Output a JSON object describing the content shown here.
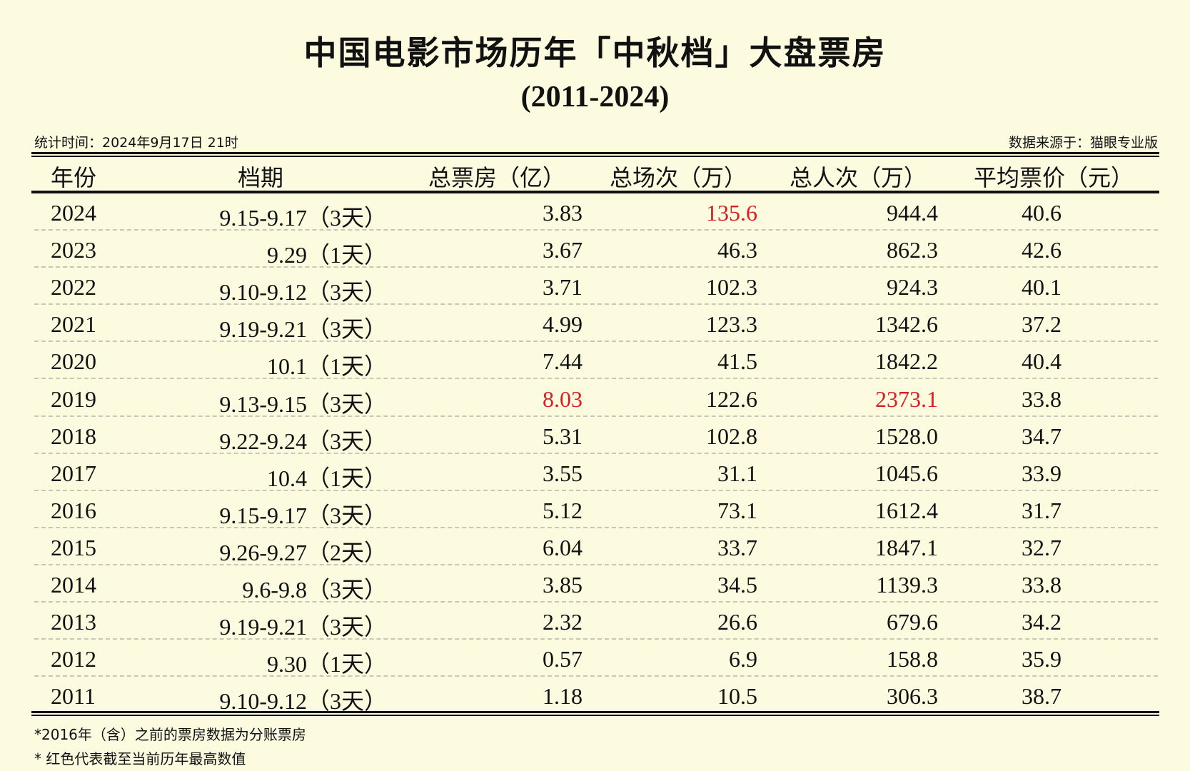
{
  "title": "中国电影市场历年「中秋档」大盘票房",
  "subtitle": "(2011-2024)",
  "stat_time": "统计时间：2024年9月17日 21时",
  "source": "数据来源于：猫眼专业版",
  "headers": [
    "年份",
    "档期",
    "总票房（亿）",
    "总场次（万）",
    "总人次（万）",
    "平均票价（元）"
  ],
  "highlight_color": "#d42020",
  "rows": [
    {
      "year": "2024",
      "period": "9.15-9.17（3天）",
      "box": "3.83",
      "shows": "135.6",
      "admissions": "944.4",
      "price": "40.6",
      "red": [
        "shows"
      ]
    },
    {
      "year": "2023",
      "period": "9.29（1天）",
      "box": "3.67",
      "shows": "46.3",
      "admissions": "862.3",
      "price": "42.6",
      "red": []
    },
    {
      "year": "2022",
      "period": "9.10-9.12（3天）",
      "box": "3.71",
      "shows": "102.3",
      "admissions": "924.3",
      "price": "40.1",
      "red": []
    },
    {
      "year": "2021",
      "period": "9.19-9.21（3天）",
      "box": "4.99",
      "shows": "123.3",
      "admissions": "1342.6",
      "price": "37.2",
      "red": []
    },
    {
      "year": "2020",
      "period": "10.1（1天）",
      "box": "7.44",
      "shows": "41.5",
      "admissions": "1842.2",
      "price": "40.4",
      "red": []
    },
    {
      "year": "2019",
      "period": "9.13-9.15（3天）",
      "box": "8.03",
      "shows": "122.6",
      "admissions": "2373.1",
      "price": "33.8",
      "red": [
        "box",
        "admissions"
      ]
    },
    {
      "year": "2018",
      "period": "9.22-9.24（3天）",
      "box": "5.31",
      "shows": "102.8",
      "admissions": "1528.0",
      "price": "34.7",
      "red": []
    },
    {
      "year": "2017",
      "period": "10.4（1天）",
      "box": "3.55",
      "shows": "31.1",
      "admissions": "1045.6",
      "price": "33.9",
      "red": []
    },
    {
      "year": "2016",
      "period": "9.15-9.17（3天）",
      "box": "5.12",
      "shows": "73.1",
      "admissions": "1612.4",
      "price": "31.7",
      "red": []
    },
    {
      "year": "2015",
      "period": "9.26-9.27（2天）",
      "box": "6.04",
      "shows": "33.7",
      "admissions": "1847.1",
      "price": "32.7",
      "red": []
    },
    {
      "year": "2014",
      "period": "9.6-9.8（3天）",
      "box": "3.85",
      "shows": "34.5",
      "admissions": "1139.3",
      "price": "33.8",
      "red": []
    },
    {
      "year": "2013",
      "period": "9.19-9.21（3天）",
      "box": "2.32",
      "shows": "26.6",
      "admissions": "679.6",
      "price": "34.2",
      "red": []
    },
    {
      "year": "2012",
      "period": "9.30（1天）",
      "box": "0.57",
      "shows": "6.9",
      "admissions": "158.8",
      "price": "35.9",
      "red": []
    },
    {
      "year": "2011",
      "period": "9.10-9.12（3天）",
      "box": "1.18",
      "shows": "10.5",
      "admissions": "306.3",
      "price": "38.7",
      "red": []
    }
  ],
  "notes": [
    "*2016年（含）之前的票房数据为分账票房",
    "* 红色代表截至当前历年最高数值"
  ]
}
